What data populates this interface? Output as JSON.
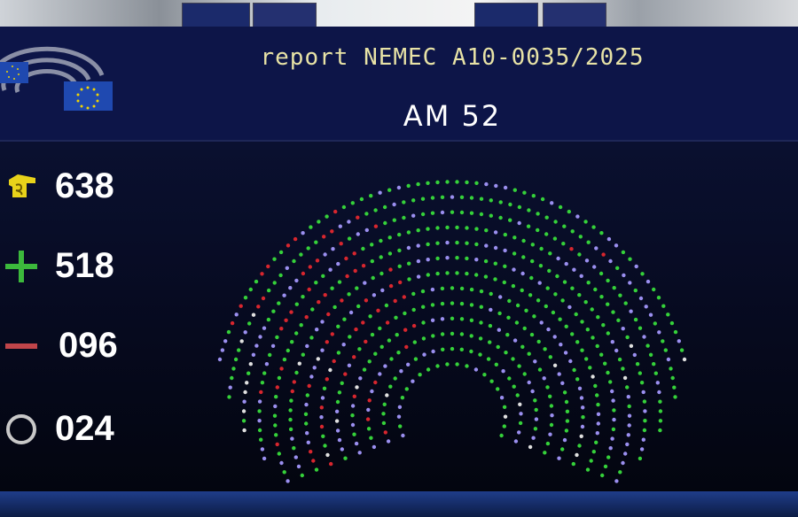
{
  "header": {
    "title": "report NEMEC A10-0035/2025",
    "amendment": "AM 52"
  },
  "results": [
    {
      "icon": "voters-hand-icon",
      "label_value": "638",
      "color": "#e8d21a"
    },
    {
      "icon": "plus-icon",
      "label_value": "518",
      "color": "#3cb93c"
    },
    {
      "icon": "minus-icon",
      "label_value": "096",
      "color": "#c0454a"
    },
    {
      "icon": "circle-icon",
      "label_value": "024",
      "color": "#c8c8c8"
    }
  ],
  "colors": {
    "for": "#35d13a",
    "against": "#d8262e",
    "abstain": "#e0e0e0",
    "not_voted": "#9b8ff0",
    "background": "#0d1548",
    "title": "#e8e3a6"
  }
}
